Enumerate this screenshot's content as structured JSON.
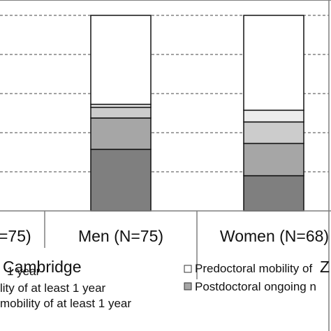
{
  "chart_data": {
    "type": "bar",
    "stacked": true,
    "percent": true,
    "ylim": [
      0,
      100
    ],
    "grid": true,
    "categories": [
      "=75)",
      "Men (N=75)",
      "Women (N=68)"
    ],
    "groups": [
      "Cambridge",
      "Z"
    ],
    "series": [
      {
        "name": "",
        "color": "#7f7f7f",
        "values": [
          null,
          31.5,
          18.0
        ]
      },
      {
        "name": "",
        "color": "#a6a6a6",
        "values": [
          null,
          16.0,
          16.5
        ]
      },
      {
        "name": "",
        "color": "#cccccc",
        "values": [
          null,
          5.5,
          11.0
        ]
      },
      {
        "name": "",
        "color": "#ececec",
        "values": [
          null,
          1.5,
          6.0
        ]
      },
      {
        "name": "",
        "color": "#ffffff",
        "values": [
          null,
          45.5,
          48.5
        ]
      }
    ],
    "legend": {
      "placement": "bottom",
      "items": [
        {
          "text": "1 year",
          "color": ""
        },
        {
          "text": "lity of at least 1 year",
          "color": ""
        },
        {
          "text": "mobility of at least 1 year",
          "color": ""
        },
        {
          "text": "Predoctoral mobility of",
          "color": "#ffffff"
        },
        {
          "text": "Postdoctoral ongoing n",
          "color": "#a6a6a6"
        }
      ]
    }
  }
}
